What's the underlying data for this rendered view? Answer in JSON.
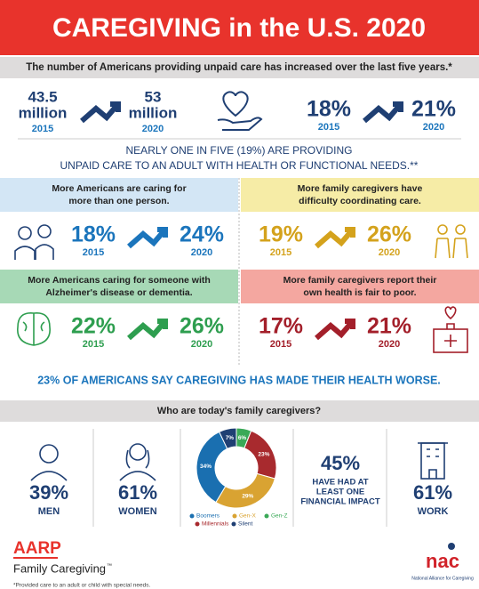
{
  "header": {
    "title": "CAREGIVING in the U.S. 2020"
  },
  "intro": {
    "text": "The number of Americans providing unpaid care has increased over the last five years.*",
    "caregivers": {
      "from": {
        "value": "43.5",
        "unit": "million",
        "year": "2015"
      },
      "to": {
        "value": "53",
        "unit": "million",
        "year": "2020"
      }
    },
    "share": {
      "from": {
        "value": "18%",
        "year": "2015"
      },
      "to": {
        "value": "21%",
        "year": "2020"
      }
    }
  },
  "adult_care": {
    "lines": [
      "NEARLY ONE IN FIVE (19%) ARE PROVIDING",
      "UNPAID CARE TO AN ADULT WITH HEALTH OR FUNCTIONAL NEEDS.**"
    ]
  },
  "panels": [
    {
      "lines": [
        "More Americans are caring for",
        "more than one person."
      ],
      "from": {
        "value": "18%",
        "year": "2015"
      },
      "to": {
        "value": "24%",
        "year": "2020"
      },
      "color": "#1b75bc",
      "header_color": "#d3e6f5"
    },
    {
      "lines": [
        "More family caregivers have",
        "difficulty coordinating care."
      ],
      "from": {
        "value": "19%",
        "year": "2015"
      },
      "to": {
        "value": "26%",
        "year": "2020"
      },
      "color": "#d4a21c",
      "header_color": "#f6eca6"
    },
    {
      "lines": [
        "More Americans caring for someone with",
        "Alzheimer's disease or dementia."
      ],
      "from": {
        "value": "22%",
        "year": "2015"
      },
      "to": {
        "value": "26%",
        "year": "2020"
      },
      "color": "#2e9e4f",
      "header_color": "#a7d9b6"
    },
    {
      "lines": [
        "More family caregivers report their",
        "own health is fair to poor."
      ],
      "from": {
        "value": "17%",
        "year": "2015"
      },
      "to": {
        "value": "21%",
        "year": "2020"
      },
      "color": "#a31f2a",
      "header_color": "#f4a7a0"
    }
  ],
  "health_worse": "23% OF AMERICANS SAY CAREGIVING HAS MADE THEIR HEALTH WORSE.",
  "profile": {
    "title": "Who are today's family caregivers?",
    "men": {
      "value": "39%",
      "label": "MEN"
    },
    "women": {
      "value": "61%",
      "label": "WOMEN"
    },
    "generations": {
      "labels": [
        "Gen-Z",
        "Millennials",
        "Gen-X",
        "Boomers",
        "Silent"
      ],
      "values": [
        6,
        23,
        29,
        34,
        7
      ],
      "value_labels": [
        "6%",
        "23%",
        "29%",
        "34%",
        "7%"
      ],
      "colors": [
        "#3aa957",
        "#a82a2e",
        "#d9a332",
        "#1a6fb0",
        "#1f3f73"
      ]
    },
    "financial": {
      "value": "45%",
      "lines": [
        "HAVE HAD AT",
        "LEAST ONE",
        "FINANCIAL IMPACT"
      ]
    },
    "work": {
      "value": "61%",
      "label": "WORK"
    }
  },
  "footer": {
    "brand": "AARP",
    "program": "Family Caregiving",
    "trademark": "™",
    "note": "*Provided care to an adult or child with special needs.",
    "partner": "nac",
    "partner_name": "National Alliance for Caregiving"
  }
}
